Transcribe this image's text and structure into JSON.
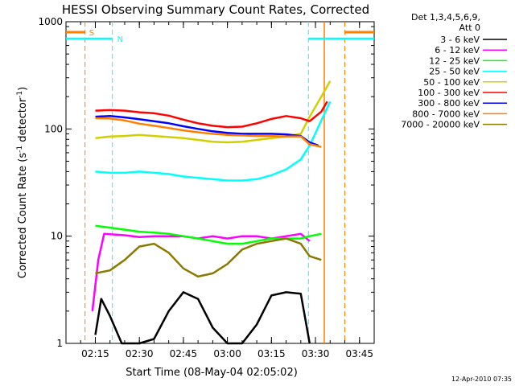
{
  "chart_data": {
    "type": "line",
    "title": "HESSI Observing Summary Count Rates, Corrected",
    "xlabel": "Start Time (08-May-04 02:05:02)",
    "ylabel_main": "Corrected Count Rate (s",
    "ylabel_sup1": "-1",
    "ylabel_mid": " detector",
    "ylabel_sup2": "-1",
    "ylabel_end": ")",
    "date_stamp": "12-Apr-2010 07:35",
    "x_unit": "minutes",
    "x_range": [
      125,
      230
    ],
    "x_ticks": [
      {
        "t": 135,
        "label": "02:15"
      },
      {
        "t": 150,
        "label": "02:30"
      },
      {
        "t": 165,
        "label": "02:45"
      },
      {
        "t": 180,
        "label": "03:00"
      },
      {
        "t": 195,
        "label": "03:15"
      },
      {
        "t": 210,
        "label": "03:30"
      },
      {
        "t": 225,
        "label": "03:45"
      }
    ],
    "y_scale": "log",
    "y_range": [
      1,
      1000
    ],
    "y_ticks": [
      {
        "v": 1,
        "label": "1"
      },
      {
        "v": 10,
        "label": "10"
      },
      {
        "v": 100,
        "label": "100"
      },
      {
        "v": 1000,
        "label": "1000"
      }
    ],
    "legend": {
      "header1": "Det 1,3,4,5,6,9,",
      "header2": "Att 0",
      "placement": "right"
    },
    "markers": {
      "S": {
        "label": "S",
        "color": "#ff7f00",
        "t": [
          131.5,
          220
        ]
      },
      "N": {
        "label": "N",
        "color": "#00ffff",
        "t": [
          140.8,
          207.6
        ]
      },
      "end_line": {
        "color": "#ff7f00",
        "t": 213
      }
    },
    "series": [
      {
        "name": "3 - 6 keV",
        "color": "#000000",
        "points": [
          [
            135,
            1.2
          ],
          [
            137,
            2.6
          ],
          [
            140,
            1.8
          ],
          [
            144,
            1.0
          ],
          [
            150,
            1.0
          ],
          [
            155,
            1.1
          ],
          [
            160,
            2.0
          ],
          [
            165,
            3.0
          ],
          [
            170,
            2.6
          ],
          [
            175,
            1.4
          ],
          [
            180,
            1.0
          ],
          [
            185,
            1.0
          ],
          [
            190,
            1.5
          ],
          [
            195,
            2.8
          ],
          [
            200,
            3.0
          ],
          [
            205,
            2.9
          ],
          [
            208,
            1.0
          ]
        ]
      },
      {
        "name": "6 - 12 keV",
        "color": "#ff00ff",
        "points": [
          [
            134,
            2.0
          ],
          [
            136,
            6.0
          ],
          [
            138,
            10.5
          ],
          [
            145,
            10.2
          ],
          [
            150,
            9.8
          ],
          [
            155,
            10.0
          ],
          [
            160,
            10.0
          ],
          [
            165,
            10.0
          ],
          [
            170,
            9.5
          ],
          [
            175,
            10.0
          ],
          [
            180,
            9.5
          ],
          [
            185,
            10.0
          ],
          [
            190,
            10.0
          ],
          [
            195,
            9.5
          ],
          [
            200,
            10.0
          ],
          [
            205,
            10.5
          ],
          [
            208,
            9.0
          ]
        ]
      },
      {
        "name": "12 - 25 keV",
        "color": "#00ff00",
        "points": [
          [
            135,
            12.5
          ],
          [
            140,
            12.0
          ],
          [
            145,
            11.5
          ],
          [
            150,
            11.0
          ],
          [
            155,
            10.8
          ],
          [
            160,
            10.5
          ],
          [
            165,
            10.0
          ],
          [
            170,
            9.5
          ],
          [
            175,
            9.0
          ],
          [
            180,
            8.5
          ],
          [
            185,
            8.5
          ],
          [
            190,
            9.0
          ],
          [
            195,
            9.5
          ],
          [
            200,
            9.5
          ],
          [
            205,
            9.5
          ],
          [
            208,
            10.0
          ],
          [
            212,
            10.5
          ]
        ]
      },
      {
        "name": "25 - 50 keV",
        "color": "#00ffff",
        "points": [
          [
            135,
            40
          ],
          [
            140,
            39
          ],
          [
            145,
            39
          ],
          [
            150,
            40
          ],
          [
            155,
            39
          ],
          [
            160,
            38
          ],
          [
            165,
            36
          ],
          [
            170,
            35
          ],
          [
            175,
            34
          ],
          [
            180,
            33
          ],
          [
            185,
            33
          ],
          [
            190,
            34
          ],
          [
            195,
            37
          ],
          [
            200,
            42
          ],
          [
            205,
            52
          ],
          [
            208,
            70
          ],
          [
            212,
            120
          ],
          [
            215,
            180
          ]
        ]
      },
      {
        "name": "50 - 100 keV",
        "color": "#d0d000",
        "points": [
          [
            135,
            82
          ],
          [
            140,
            85
          ],
          [
            145,
            86
          ],
          [
            150,
            88
          ],
          [
            155,
            86
          ],
          [
            160,
            84
          ],
          [
            165,
            82
          ],
          [
            170,
            79
          ],
          [
            175,
            76
          ],
          [
            180,
            75
          ],
          [
            185,
            76
          ],
          [
            190,
            79
          ],
          [
            195,
            82
          ],
          [
            200,
            85
          ],
          [
            205,
            90
          ],
          [
            208,
            130
          ],
          [
            212,
            200
          ],
          [
            215,
            280
          ]
        ]
      },
      {
        "name": "100 - 300 keV",
        "color": "#ff0000",
        "points": [
          [
            135,
            148
          ],
          [
            140,
            150
          ],
          [
            145,
            148
          ],
          [
            150,
            143
          ],
          [
            155,
            140
          ],
          [
            160,
            133
          ],
          [
            165,
            122
          ],
          [
            170,
            113
          ],
          [
            175,
            107
          ],
          [
            180,
            104
          ],
          [
            185,
            105
          ],
          [
            190,
            113
          ],
          [
            195,
            124
          ],
          [
            200,
            132
          ],
          [
            205,
            126
          ],
          [
            208,
            118
          ],
          [
            212,
            145
          ],
          [
            214,
            180
          ]
        ]
      },
      {
        "name": "300 - 800 keV",
        "color": "#0000ff",
        "points": [
          [
            135,
            130
          ],
          [
            140,
            132
          ],
          [
            145,
            128
          ],
          [
            150,
            123
          ],
          [
            155,
            118
          ],
          [
            160,
            113
          ],
          [
            165,
            106
          ],
          [
            170,
            100
          ],
          [
            175,
            95
          ],
          [
            180,
            92
          ],
          [
            185,
            90
          ],
          [
            190,
            90
          ],
          [
            195,
            90
          ],
          [
            200,
            89
          ],
          [
            205,
            86
          ],
          [
            208,
            75
          ],
          [
            211,
            70
          ]
        ]
      },
      {
        "name": "800 - 7000 keV",
        "color": "#ff7f00",
        "points": [
          [
            135,
            126
          ],
          [
            140,
            125
          ],
          [
            145,
            120
          ],
          [
            150,
            112
          ],
          [
            155,
            107
          ],
          [
            160,
            102
          ],
          [
            165,
            97
          ],
          [
            170,
            93
          ],
          [
            175,
            90
          ],
          [
            180,
            88
          ],
          [
            185,
            87
          ],
          [
            190,
            86
          ],
          [
            195,
            86
          ],
          [
            200,
            85
          ],
          [
            205,
            85
          ],
          [
            208,
            72
          ],
          [
            212,
            68
          ]
        ]
      },
      {
        "name": "7000 - 20000 keV",
        "color": "#8b7a00",
        "points": [
          [
            135,
            4.5
          ],
          [
            140,
            4.8
          ],
          [
            145,
            6.0
          ],
          [
            150,
            8.0
          ],
          [
            155,
            8.5
          ],
          [
            160,
            7.0
          ],
          [
            165,
            5.0
          ],
          [
            170,
            4.2
          ],
          [
            175,
            4.5
          ],
          [
            180,
            5.5
          ],
          [
            185,
            7.5
          ],
          [
            190,
            8.5
          ],
          [
            195,
            9.0
          ],
          [
            200,
            9.5
          ],
          [
            205,
            8.5
          ],
          [
            208,
            6.5
          ],
          [
            212,
            6.0
          ]
        ]
      }
    ]
  }
}
